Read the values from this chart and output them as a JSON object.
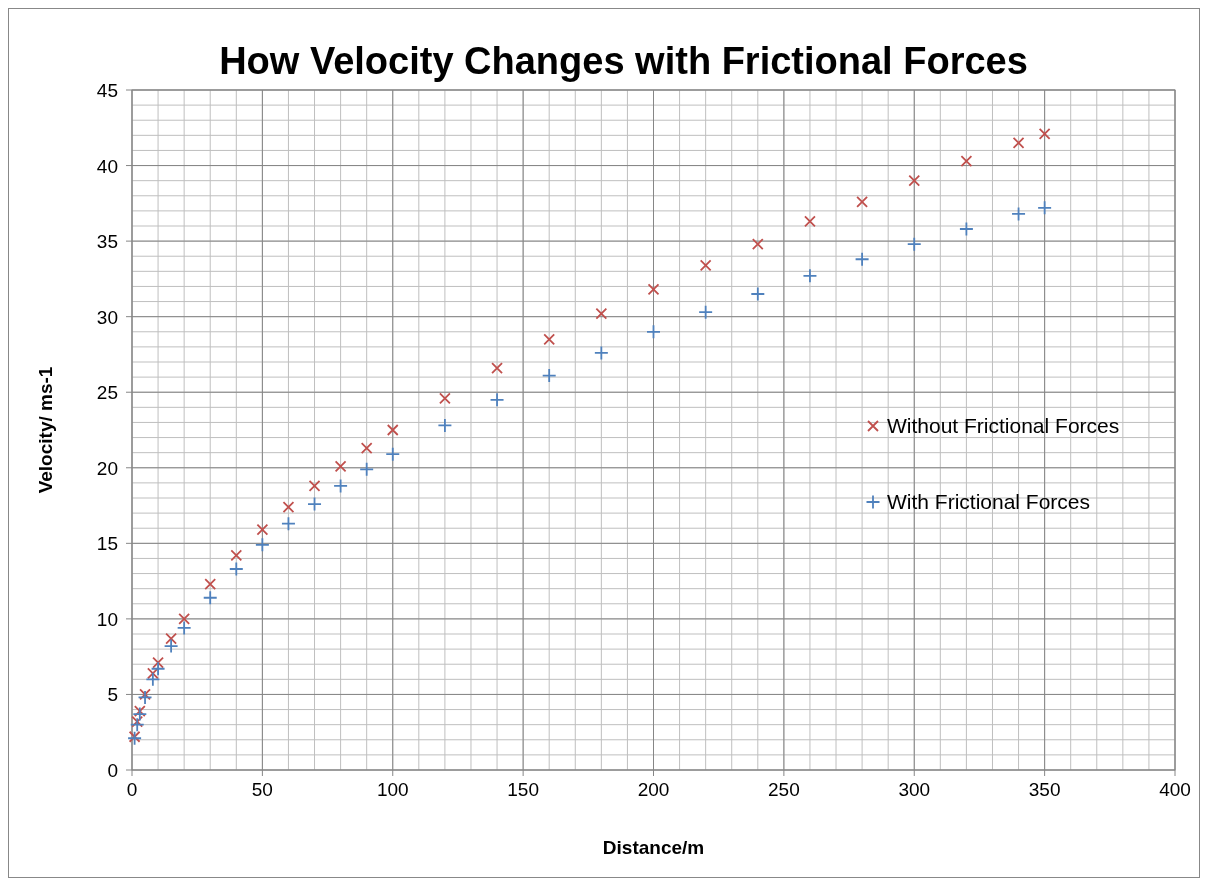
{
  "chart_data": {
    "type": "scatter",
    "title": "How Velocity Changes with Frictional Forces",
    "xlabel": "Distance/m",
    "ylabel": "Velocity/ ms-1",
    "xlim": [
      0,
      400
    ],
    "xticks": [
      0,
      50,
      100,
      150,
      200,
      250,
      300,
      350,
      400
    ],
    "ylim": [
      0,
      45
    ],
    "yticks": [
      0,
      5,
      10,
      15,
      20,
      25,
      30,
      35,
      40,
      45
    ],
    "grid": true,
    "legend": "right",
    "marker": "cross",
    "series": [
      {
        "name": "Without Frictional Forces",
        "color": "#c0504d",
        "x": [
          1,
          2,
          3,
          5,
          8,
          10,
          15,
          20,
          30,
          40,
          50,
          60,
          70,
          80,
          90,
          100,
          120,
          140,
          160,
          180,
          200,
          220,
          240,
          260,
          280,
          300,
          320,
          340,
          350
        ],
        "values": [
          2.2,
          3.2,
          3.9,
          5.0,
          6.4,
          7.1,
          8.7,
          10.0,
          12.3,
          14.2,
          15.9,
          17.4,
          18.8,
          20.1,
          21.3,
          22.5,
          24.6,
          26.6,
          28.5,
          30.2,
          31.8,
          33.4,
          34.8,
          36.3,
          37.6,
          39.0,
          40.3,
          41.5,
          42.1
        ]
      },
      {
        "name": "With Frictional Forces",
        "color": "#4f81bd",
        "x": [
          1,
          2,
          3,
          5,
          8,
          10,
          15,
          20,
          30,
          40,
          50,
          60,
          70,
          80,
          90,
          100,
          120,
          140,
          160,
          180,
          200,
          220,
          240,
          260,
          280,
          300,
          320,
          340,
          350
        ],
        "values": [
          2.1,
          3.0,
          3.7,
          4.8,
          6.0,
          6.7,
          8.2,
          9.4,
          11.4,
          13.3,
          14.9,
          16.3,
          17.6,
          18.8,
          19.9,
          20.9,
          22.8,
          24.5,
          26.1,
          27.6,
          29.0,
          30.3,
          31.5,
          32.7,
          33.8,
          34.8,
          35.8,
          36.8,
          37.2
        ]
      }
    ]
  }
}
